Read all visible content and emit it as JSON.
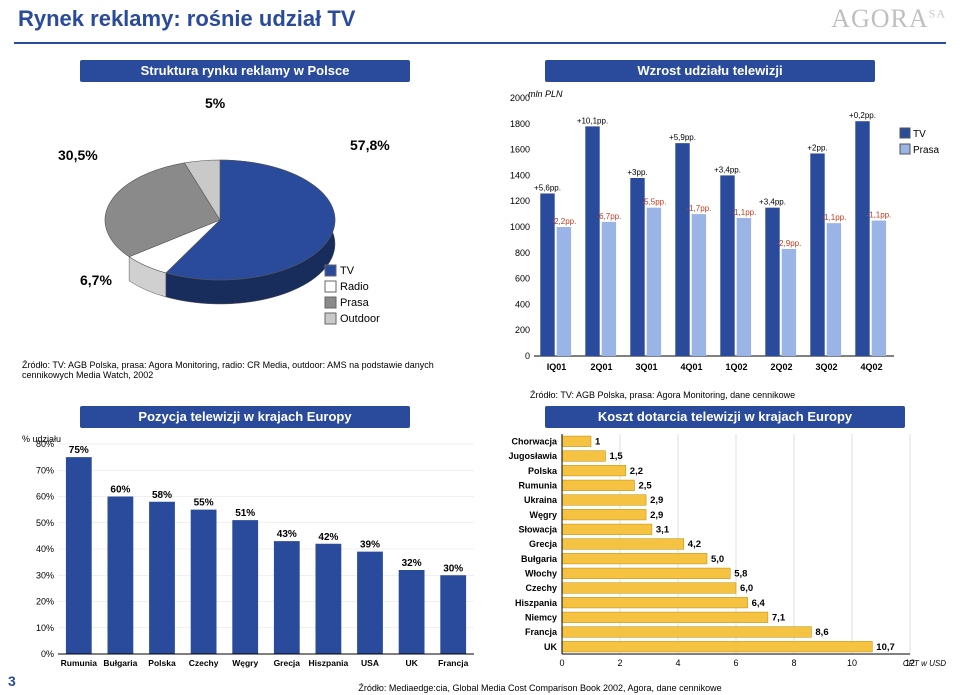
{
  "title": "Rynek reklamy: rośnie udział TV",
  "logo": "AGORA",
  "logo_suffix": "SA",
  "slide_number": "3",
  "colors": {
    "navy": "#2a4b9b",
    "blue": "#4a74d4",
    "lightblue": "#9bb4e6",
    "red": "#c33b1f",
    "yellow": "#f5c242",
    "grey": "#8a8a8a",
    "ltgrey": "#c9c9c9",
    "bar_border": "#2a4b9b",
    "grid": "#bfbfbf"
  },
  "pie": {
    "header": "Struktura rynku reklamy w Polsce",
    "header_bg": "#2a4b9b",
    "slices": [
      {
        "label": "TV",
        "value": 57.8,
        "color": "#2a4b9b",
        "txt": "57,8%"
      },
      {
        "label": "Radio",
        "value": 6.7,
        "color": "#ffffff",
        "txt": "6,7%"
      },
      {
        "label": "Prasa",
        "value": 30.5,
        "color": "#8a8a8a",
        "txt": "30,5%"
      },
      {
        "label": "Outdoor",
        "value": 5.0,
        "color": "#c9c9c9",
        "txt": "5%"
      }
    ],
    "legend": [
      {
        "name": "TV",
        "color": "#2a4b9b"
      },
      {
        "name": "Radio",
        "color": "#ffffff"
      },
      {
        "name": "Prasa",
        "color": "#8a8a8a"
      },
      {
        "name": "Outdoor",
        "color": "#c9c9c9"
      }
    ],
    "source": "Źródło: TV: AGB Polska, prasa: Agora Monitoring, radio: CR Media, outdoor: AMS na podstawie danych cennikowych Media Watch, 2002"
  },
  "growth": {
    "header": "Wzrost udziału telewizji",
    "header_bg": "#2a4b9b",
    "ylabel": "mln PLN",
    "ylim": [
      0,
      2000
    ],
    "ytick": 200,
    "categories": [
      "IQ01",
      "2Q01",
      "3Q01",
      "4Q01",
      "1Q02",
      "2Q02",
      "3Q02",
      "4Q02"
    ],
    "series": [
      {
        "name": "TV",
        "color": "#2a4b9b",
        "values": [
          1260,
          1780,
          1380,
          1650,
          1400,
          1150,
          1570,
          1820
        ]
      },
      {
        "name": "Prasa",
        "color": "#9bb4e6",
        "values": [
          1000,
          1040,
          1150,
          1100,
          1070,
          830,
          1030,
          1050
        ]
      }
    ],
    "annotations_tv": [
      "+5,6pp.",
      "+10,1pp.",
      "+3pp.",
      "+5,9pp.",
      "+3,4pp.",
      "+3,4pp.",
      "+2pp.",
      "+0,2pp."
    ],
    "annotations_prasa": [
      "-2,2pp.",
      "-6,7pp.",
      "-5,5pp.",
      "-1,7pp.",
      "-1,1pp.",
      "-2,9pp.",
      "-1,1pp.",
      "-1,1pp."
    ],
    "legend": [
      {
        "name": "TV",
        "color": "#2a4b9b"
      },
      {
        "name": "Prasa",
        "color": "#9bb4e6"
      }
    ],
    "source": "Źródło: TV: AGB Polska, prasa: Agora Monitoring, dane cennikowe"
  },
  "position": {
    "header": "Pozycja telewizji w krajach Europy",
    "header_bg": "#2a4b9b",
    "ylabel": "% udziału",
    "ylim": [
      0,
      80
    ],
    "ytick": 10,
    "bars": [
      {
        "cat": "Rumunia",
        "val": 75,
        "label": "75%"
      },
      {
        "cat": "Bułgaria",
        "val": 60,
        "label": "60%"
      },
      {
        "cat": "Polska",
        "val": 58,
        "label": "58%"
      },
      {
        "cat": "Czechy",
        "val": 55,
        "label": "55%"
      },
      {
        "cat": "Węgry",
        "val": 51,
        "label": "51%"
      },
      {
        "cat": "Grecja",
        "val": 43,
        "label": "43%"
      },
      {
        "cat": "Hiszpania",
        "val": 42,
        "label": "42%"
      },
      {
        "cat": "USA",
        "val": 39,
        "label": "39%"
      },
      {
        "cat": "UK",
        "val": 32,
        "label": "32%"
      },
      {
        "cat": "Francja",
        "val": 30,
        "label": "30%"
      }
    ],
    "bar_color": "#2a4b9b"
  },
  "cost": {
    "header": "Koszt dotarcia telewizji w krajach Europy",
    "header_bg": "#2a4b9b",
    "xlabel": "CPT w USD",
    "xlim": [
      0,
      12
    ],
    "xtick": 2,
    "bars": [
      {
        "cat": "Chorwacja",
        "val": 1,
        "label": "1"
      },
      {
        "cat": "Jugosławia",
        "val": 1.5,
        "label": "1,5"
      },
      {
        "cat": "Polska",
        "val": 2.2,
        "label": "2,2"
      },
      {
        "cat": "Rumunia",
        "val": 2.5,
        "label": "2,5"
      },
      {
        "cat": "Ukraina",
        "val": 2.9,
        "label": "2,9"
      },
      {
        "cat": "Węgry",
        "val": 2.9,
        "label": "2,9"
      },
      {
        "cat": "Słowacja",
        "val": 3.1,
        "label": "3,1"
      },
      {
        "cat": "Grecja",
        "val": 4.2,
        "label": "4,2"
      },
      {
        "cat": "Bułgaria",
        "val": 5.0,
        "label": "5,0"
      },
      {
        "cat": "Włochy",
        "val": 5.8,
        "label": "5,8"
      },
      {
        "cat": "Czechy",
        "val": 6.0,
        "label": "6,0"
      },
      {
        "cat": "Hiszpania",
        "val": 6.4,
        "label": "6,4"
      },
      {
        "cat": "Niemcy",
        "val": 7.1,
        "label": "7,1"
      },
      {
        "cat": "Francja",
        "val": 8.6,
        "label": "8,6"
      },
      {
        "cat": "UK",
        "val": 10.7,
        "label": "10,7"
      }
    ],
    "bar_color": "#f5c242",
    "source": "Źródło: Mediaedge:cia, Global Media Cost Comparison Book 2002, Agora, dane cennikowe"
  }
}
